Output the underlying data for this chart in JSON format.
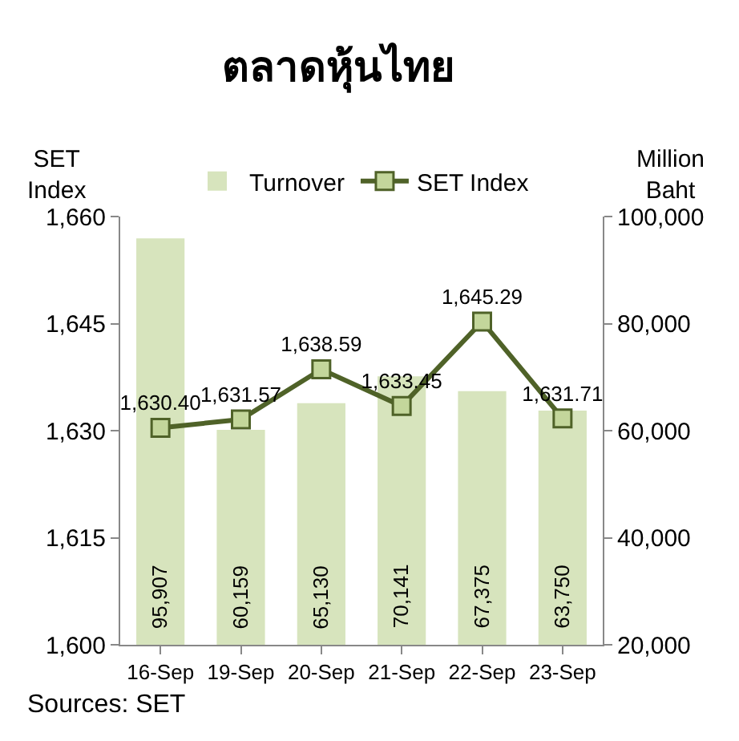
{
  "chart_data": {
    "type": "bar",
    "title": "ตลาดหุ้นไทย",
    "ylabel": "SET\nIndex",
    "y2label": "Million\nBaht",
    "categories": [
      "16-Sep",
      "19-Sep",
      "20-Sep",
      "21-Sep",
      "22-Sep",
      "23-Sep"
    ],
    "series": [
      {
        "name": "Turnover",
        "axis": "y2",
        "color": "#d7e4bd",
        "values": [
          95907,
          60159,
          65130,
          70141,
          67375,
          63750
        ],
        "value_labels": [
          "95,907",
          "60,159",
          "65,130",
          "70,141",
          "67,375",
          "63,750"
        ]
      },
      {
        "name": "SET Index",
        "type": "line",
        "axis": "y",
        "color": "#4f6228",
        "marker": "square",
        "values": [
          1630.4,
          1631.57,
          1638.59,
          1633.45,
          1645.29,
          1631.71
        ],
        "value_labels": [
          "1,630.40",
          "1,631.57",
          "1,638.59",
          "1,633.45",
          "1,645.29",
          "1,631.71"
        ]
      }
    ],
    "ylim": [
      1600,
      1660
    ],
    "yticks": [
      {
        "value": 1600,
        "label": "1,600"
      },
      {
        "value": 1615,
        "label": "1,615"
      },
      {
        "value": 1630,
        "label": "1,630"
      },
      {
        "value": 1645,
        "label": "1,645"
      },
      {
        "value": 1660,
        "label": "1,660"
      }
    ],
    "y2lim": [
      20000,
      100000
    ],
    "y2ticks": [
      {
        "value": 20000,
        "label": "20,000"
      },
      {
        "value": 40000,
        "label": "40,000"
      },
      {
        "value": 60000,
        "label": "60,000"
      },
      {
        "value": 80000,
        "label": "80,000"
      },
      {
        "value": 100000,
        "label": "100,000"
      }
    ],
    "grid": false,
    "legend": "top",
    "annotations": [
      "Sources: SET"
    ]
  }
}
